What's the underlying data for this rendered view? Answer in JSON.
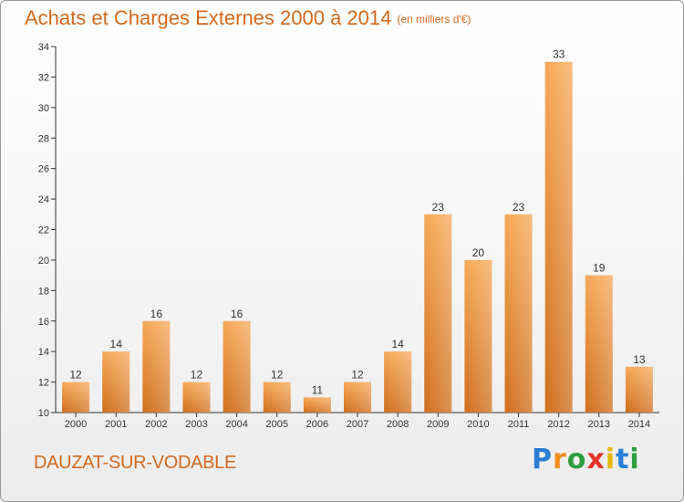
{
  "header": {
    "title": "Achats et Charges Externes 2000 à 2014",
    "subtitle": "(en milliers d'€)"
  },
  "footer": {
    "place": "DAUZAT-SUR-VODABLE",
    "logo_letters": [
      "P",
      "r",
      "o",
      "x",
      "i",
      "t",
      "i"
    ]
  },
  "colors": {
    "title": "#d2691e",
    "bar_top": "#f6a857",
    "bar_bottom": "#cf6e1c",
    "logo": [
      "#2a7fd4",
      "#f28c1e",
      "#2e9e3d",
      "#e5332a",
      "#e5b700",
      "#2a7fd4",
      "#2e9e3d"
    ]
  },
  "chart_data": {
    "type": "bar",
    "categories": [
      "2000",
      "2001",
      "2002",
      "2003",
      "2004",
      "2005",
      "2006",
      "2007",
      "2008",
      "2009",
      "2010",
      "2011",
      "2012",
      "2013",
      "2014"
    ],
    "values": [
      12,
      14,
      16,
      12,
      16,
      12,
      11,
      12,
      14,
      23,
      20,
      23,
      33,
      19,
      13
    ],
    "ylim": [
      10,
      34
    ],
    "yticks": [
      10,
      12,
      14,
      16,
      18,
      20,
      22,
      24,
      26,
      28,
      30,
      32,
      34
    ],
    "grid": false,
    "data_labels": true
  }
}
